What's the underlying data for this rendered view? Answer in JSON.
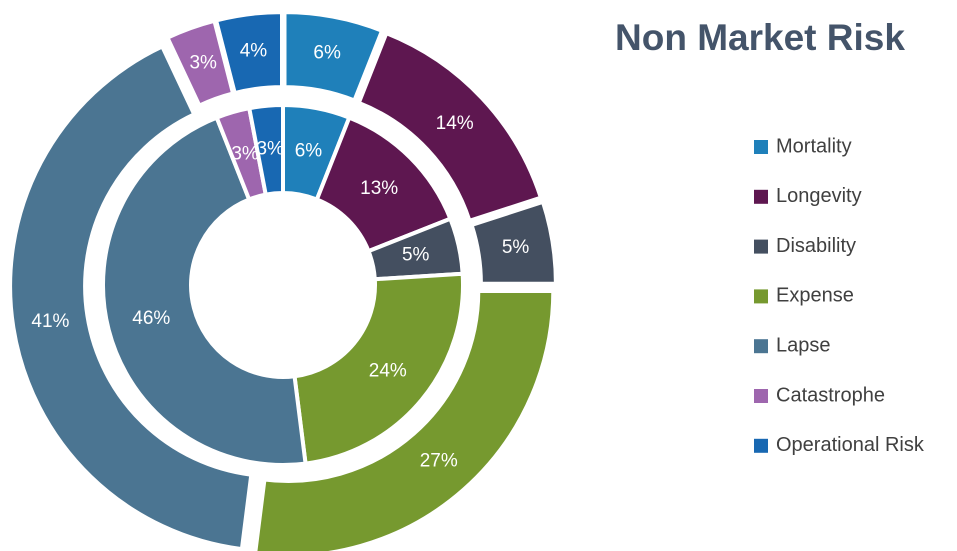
{
  "chart_data": {
    "type": "donut",
    "title": "Non Market Risk",
    "categories": [
      "Mortality",
      "Longevity",
      "Disability",
      "Expense",
      "Lapse",
      "Catastrophe",
      "Operational Risk"
    ],
    "colors": [
      "#1f80ba",
      "#5e1750",
      "#444f60",
      "#76992f",
      "#4b7592",
      "#9e66ae",
      "#1868b2"
    ],
    "series": [
      {
        "values": [
          6,
          13,
          5,
          24,
          46,
          3,
          3
        ],
        "value_labels": [
          "6%",
          "13%",
          "5%",
          "24%",
          "46%",
          "3%",
          "3%"
        ]
      },
      {
        "values": [
          6,
          14,
          5,
          27,
          41,
          3,
          4
        ],
        "value_labels": [
          "6%",
          "14%",
          "5%",
          "27%",
          "41%",
          "3%",
          "4%"
        ]
      }
    ],
    "legend": "right"
  }
}
